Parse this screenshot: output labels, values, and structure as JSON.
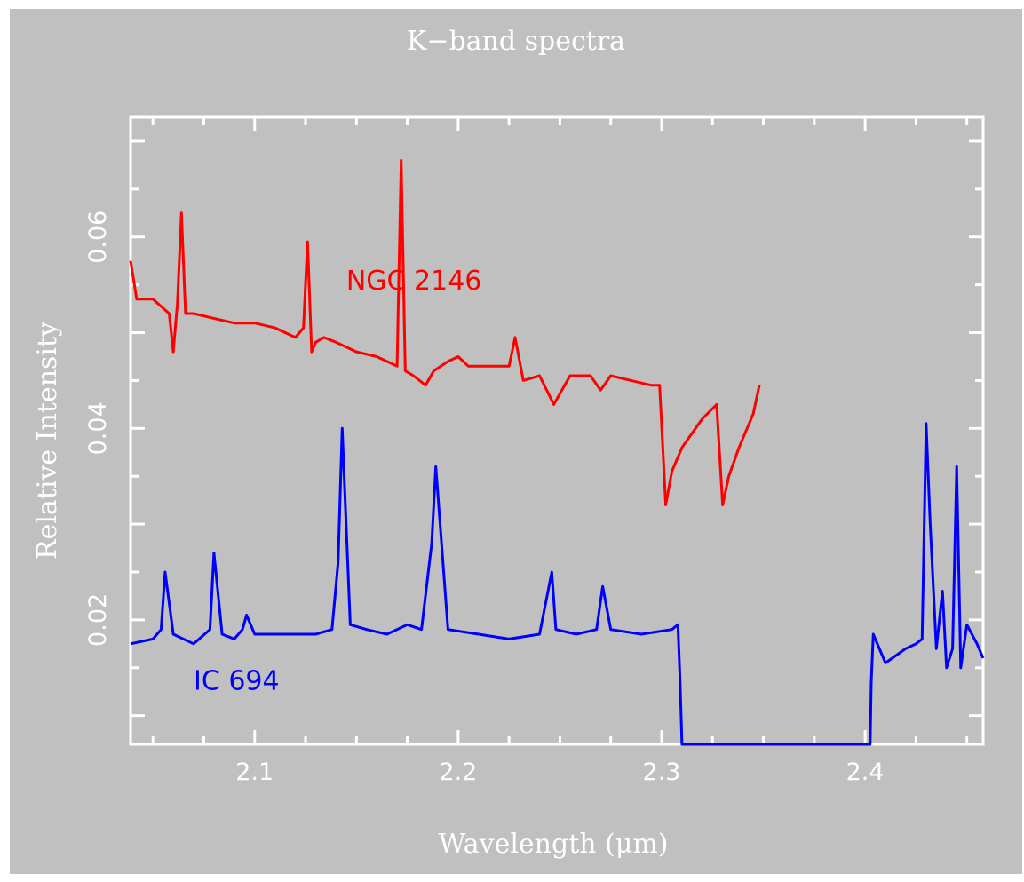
{
  "chart_data": {
    "type": "line",
    "title": "K−band spectra",
    "xlabel": "Wavelength (μm)",
    "ylabel": "Relative Intensity",
    "xlim": [
      2.039,
      2.458
    ],
    "ylim": [
      0.007,
      0.0725
    ],
    "x_ticks": [
      2.1,
      2.2,
      2.3,
      2.4
    ],
    "x_tick_labels": [
      "2.1",
      "2.2",
      "2.3",
      "2.4"
    ],
    "y_ticks": [
      0.02,
      0.04,
      0.06
    ],
    "y_tick_labels": [
      "0.02",
      "0.04",
      "0.06"
    ],
    "grid": false,
    "background": "#c0c0c0",
    "axis_color": "#ffffff",
    "series": [
      {
        "name": "NGC 2146",
        "color": "#ff0000",
        "x": [
          2.039,
          2.042,
          2.05,
          2.058,
          2.06,
          2.062,
          2.064,
          2.066,
          2.07,
          2.08,
          2.09,
          2.1,
          2.11,
          2.12,
          2.124,
          2.126,
          2.128,
          2.13,
          2.134,
          2.14,
          2.15,
          2.16,
          2.165,
          2.17,
          2.172,
          2.174,
          2.178,
          2.184,
          2.188,
          2.195,
          2.2,
          2.205,
          2.215,
          2.225,
          2.228,
          2.232,
          2.24,
          2.247,
          2.255,
          2.265,
          2.27,
          2.275,
          2.285,
          2.295,
          2.299,
          2.302,
          2.305,
          2.31,
          2.32,
          2.327,
          2.33,
          2.333,
          2.338,
          2.345,
          2.348
        ],
        "y": [
          0.0575,
          0.0535,
          0.0535,
          0.052,
          0.048,
          0.053,
          0.0625,
          0.052,
          0.052,
          0.0515,
          0.051,
          0.051,
          0.0505,
          0.0495,
          0.0505,
          0.0595,
          0.048,
          0.049,
          0.0495,
          0.049,
          0.048,
          0.0475,
          0.047,
          0.0465,
          0.068,
          0.046,
          0.0455,
          0.0445,
          0.046,
          0.047,
          0.0475,
          0.0465,
          0.0465,
          0.0465,
          0.0495,
          0.045,
          0.0455,
          0.0425,
          0.0455,
          0.0455,
          0.044,
          0.0455,
          0.045,
          0.0445,
          0.0445,
          0.032,
          0.0355,
          0.038,
          0.041,
          0.0425,
          0.032,
          0.035,
          0.038,
          0.0415,
          0.0445
        ]
      },
      {
        "name": "IC 694",
        "color": "#0000ff",
        "x": [
          2.039,
          2.05,
          2.054,
          2.056,
          2.06,
          2.07,
          2.078,
          2.08,
          2.084,
          2.09,
          2.094,
          2.096,
          2.1,
          2.11,
          2.12,
          2.13,
          2.138,
          2.141,
          2.143,
          2.147,
          2.155,
          2.165,
          2.175,
          2.182,
          2.187,
          2.189,
          2.195,
          2.21,
          2.225,
          2.24,
          2.246,
          2.248,
          2.258,
          2.268,
          2.271,
          2.275,
          2.29,
          2.305,
          2.308,
          2.309,
          2.31,
          2.4025,
          2.403,
          2.404,
          2.41,
          2.42,
          2.425,
          2.428,
          2.43,
          2.432,
          2.435,
          2.438,
          2.44,
          2.443,
          2.445,
          2.447,
          2.45,
          2.455,
          2.458
        ],
        "y": [
          0.0175,
          0.018,
          0.019,
          0.025,
          0.0185,
          0.0175,
          0.019,
          0.027,
          0.0185,
          0.018,
          0.019,
          0.0205,
          0.0185,
          0.0185,
          0.0185,
          0.0185,
          0.019,
          0.026,
          0.04,
          0.0195,
          0.019,
          0.0185,
          0.0195,
          0.019,
          0.028,
          0.036,
          0.019,
          0.0185,
          0.018,
          0.0185,
          0.025,
          0.019,
          0.0185,
          0.019,
          0.0235,
          0.019,
          0.0185,
          0.019,
          0.0195,
          0.014,
          0.007,
          0.007,
          0.0135,
          0.0185,
          0.0155,
          0.017,
          0.0175,
          0.018,
          0.0405,
          0.03,
          0.017,
          0.023,
          0.015,
          0.017,
          0.036,
          0.015,
          0.0195,
          0.0175,
          0.016
        ]
      }
    ]
  }
}
